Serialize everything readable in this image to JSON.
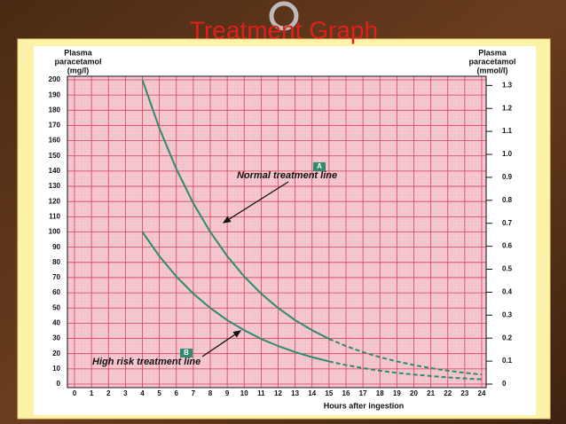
{
  "chart_data": {
    "type": "line",
    "title": "Treatment Graph",
    "y_label": [
      "Plasma",
      "paracetamol",
      "(mg/l)"
    ],
    "y2_label": [
      "Plasma",
      "paracetamol",
      "(mmol/l)"
    ],
    "x_label": "Hours after ingestion",
    "x": [
      4,
      5,
      6,
      7,
      8,
      9,
      10,
      11,
      12,
      13,
      14,
      15,
      16,
      17,
      18,
      19,
      20,
      21,
      22,
      23,
      24
    ],
    "series": [
      {
        "name": "Normal treatment line",
        "color": "#2e8b70",
        "values": [
          200,
          168.2,
          141.4,
          118.9,
          100,
          84.1,
          70.7,
          59.5,
          50,
          42,
          35.4,
          29.7,
          null,
          null,
          null,
          null,
          null,
          null,
          null,
          null,
          null
        ]
      },
      {
        "color": "#2e8b70",
        "dash": "5 3",
        "values": [
          null,
          null,
          null,
          null,
          null,
          null,
          null,
          null,
          null,
          null,
          null,
          29.7,
          25,
          21,
          17.7,
          14.9,
          12.5,
          10.5,
          8.8,
          7.4,
          6.25
        ]
      },
      {
        "name": "High risk treatment line",
        "color": "#2e8b70",
        "values": [
          100,
          84.1,
          70.7,
          59.5,
          50,
          42,
          35.4,
          29.7,
          25,
          21,
          17.7,
          14.9,
          null,
          null,
          null,
          null,
          null,
          null,
          null,
          null,
          null
        ]
      },
      {
        "color": "#2e8b70",
        "dash": "5 3",
        "values": [
          null,
          null,
          null,
          null,
          null,
          null,
          null,
          null,
          null,
          null,
          null,
          14.9,
          12.5,
          10.5,
          8.8,
          7.4,
          6.25,
          5.3,
          4.4,
          3.7,
          3.1
        ]
      }
    ],
    "annotations": [
      "A",
      "B"
    ],
    "xlim": [
      0,
      24
    ],
    "xticks": [
      0,
      1,
      2,
      3,
      4,
      5,
      6,
      7,
      8,
      9,
      10,
      11,
      12,
      13,
      14,
      15,
      16,
      17,
      18,
      19,
      20,
      21,
      22,
      23,
      24
    ],
    "ylim": [
      0,
      200
    ],
    "yticks": [
      0,
      10,
      20,
      30,
      40,
      50,
      60,
      70,
      80,
      90,
      100,
      110,
      120,
      130,
      140,
      150,
      160,
      170,
      180,
      190,
      200
    ],
    "y2lim": [
      0,
      1.3245
    ],
    "y2ticks": [
      0,
      0.1,
      0.2,
      0.3,
      0.4,
      0.5,
      0.6,
      0.7,
      0.8,
      0.9,
      {
        "value": 1,
        "label": "1.0"
      },
      1.1,
      1.2,
      1.3
    ],
    "grid": true
  }
}
